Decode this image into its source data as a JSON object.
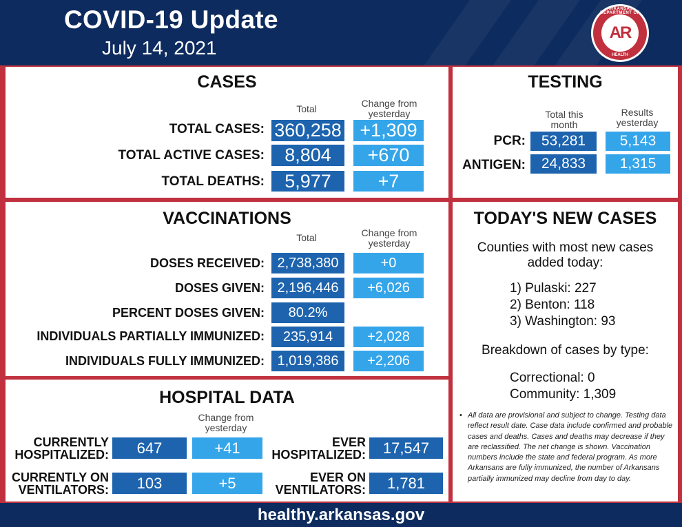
{
  "header": {
    "title": "COVID-19 Update",
    "date": "July 14, 2021",
    "seal": {
      "text": "AR",
      "rim_top": "ARKANSAS DEPARTMENT OF",
      "rim_bottom": "HEALTH"
    }
  },
  "colors": {
    "navy": "#0d2b5e",
    "red": "#c0303e",
    "dark_blue": "#1d63ae",
    "light_blue": "#35a5ea"
  },
  "cases": {
    "title": "CASES",
    "col_total": "Total",
    "col_change": "Change from yesterday",
    "rows": [
      {
        "label": "TOTAL CASES:",
        "total": "360,258",
        "change": "+1,309"
      },
      {
        "label": "TOTAL ACTIVE CASES:",
        "total": "8,804",
        "change": "+670"
      },
      {
        "label": "TOTAL DEATHS:",
        "total": "5,977",
        "change": "+7"
      }
    ]
  },
  "testing": {
    "title": "TESTING",
    "col_total": "Total this month",
    "col_change": "Results yesterday",
    "rows": [
      {
        "label": "PCR:",
        "total": "53,281",
        "change": "5,143"
      },
      {
        "label": "ANTIGEN:",
        "total": "24,833",
        "change": "1,315"
      }
    ]
  },
  "vaccinations": {
    "title": "VACCINATIONS",
    "col_total": "Total",
    "col_change": "Change from yesterday",
    "rows": [
      {
        "label": "DOSES RECEIVED:",
        "total": "2,738,380",
        "change": "+0"
      },
      {
        "label": "DOSES GIVEN:",
        "total": "2,196,446",
        "change": "+6,026"
      },
      {
        "label": "PERCENT DOSES GIVEN:",
        "total": "80.2%",
        "change": ""
      },
      {
        "label": "INDIVIDUALS PARTIALLY IMMUNIZED:",
        "total": "235,914",
        "change": "+2,028"
      },
      {
        "label": "INDIVIDUALS FULLY IMMUNIZED:",
        "total": "1,019,386",
        "change": "+2,206"
      }
    ]
  },
  "hospital": {
    "title": "HOSPITAL DATA",
    "col_change": "Change from yesterday",
    "currently_hospitalized": {
      "label_1": "CURRENTLY",
      "label_2": "HOSPITALIZED:",
      "total": "647",
      "change": "+41"
    },
    "currently_ventilators": {
      "label_1": "CURRENTLY ON",
      "label_2": "VENTILATORS:",
      "total": "103",
      "change": "+5"
    },
    "ever_hospitalized": {
      "label_1": "EVER",
      "label_2": "HOSPITALIZED:",
      "total": "17,547"
    },
    "ever_ventilators": {
      "label_1": "EVER ON",
      "label_2": "VENTILATORS:",
      "total": "1,781"
    }
  },
  "new_cases": {
    "title": "TODAY'S NEW CASES",
    "counties_heading_1": "Counties with most new cases",
    "counties_heading_2": "added today:",
    "counties": [
      "1) Pulaski: 227",
      "2) Benton: 118",
      "3) Washington: 93"
    ],
    "breakdown_heading": "Breakdown of cases by type:",
    "breakdown": [
      "Correctional: 0",
      "Community: 1,309"
    ],
    "note": "All data are provisional and subject to change. Testing data reflect result date. Case data include confirmed and probable cases and deaths. Cases and deaths may decrease if they are reclassified. The net change is shown. Vaccination numbers include the state and federal program. As more Arkansans are fully immunized, the number of Arkansans partially immunized may decline from day to day."
  },
  "footer": {
    "url": "healthy.arkansas.gov"
  }
}
